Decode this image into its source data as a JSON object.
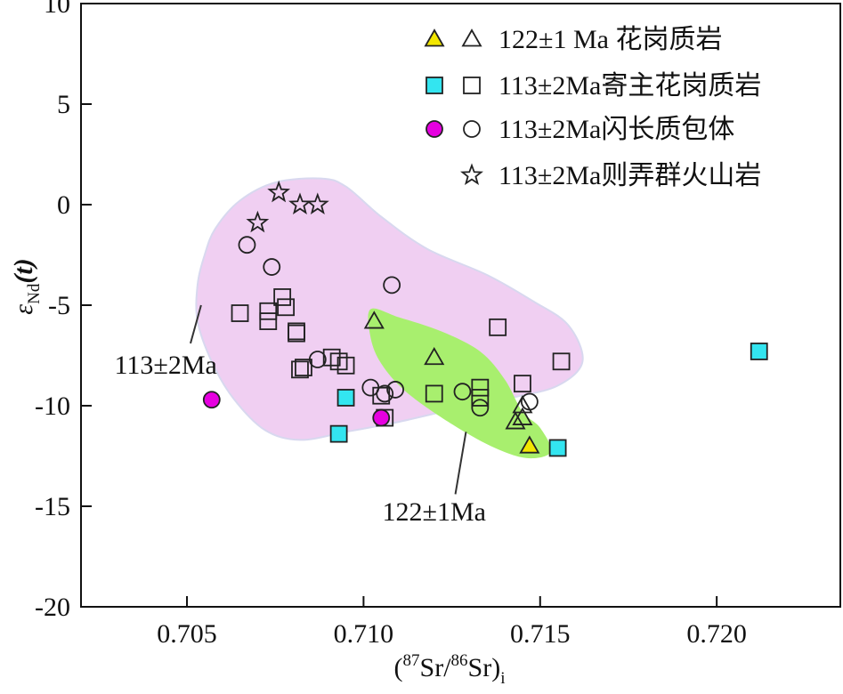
{
  "chart_data": {
    "type": "scatter",
    "xlabel": {
      "open": "(",
      "sup1": "87",
      "mid": "Sr/",
      "sup2": "86",
      "end": "Sr)",
      "sub": "i"
    },
    "ylabel": {
      "symbol": "ε",
      "sub": "Nd",
      "rest": "(t)"
    },
    "xlim": [
      0.702,
      0.7235
    ],
    "ylim": [
      -20,
      10
    ],
    "xticks": [
      0.705,
      0.71,
      0.715,
      0.72
    ],
    "xtick_labels": [
      "0.705",
      "0.710",
      "0.715",
      "0.720"
    ],
    "yticks": [
      10,
      5,
      0,
      -5,
      -10,
      -15,
      -20
    ],
    "ytick_labels": [
      "10",
      "5",
      "0",
      "-5",
      "-10",
      "-15",
      "-20"
    ],
    "legend": [
      {
        "label": "122±1 Ma 花岗质岩",
        "marker": "triangle",
        "fill": "#f2e600"
      },
      {
        "label": "113±2Ma寄主花岗质岩",
        "marker": "square",
        "fill": "#33e5f0"
      },
      {
        "label": "113±2Ma闪长质包体",
        "marker": "circle",
        "fill": "#e600e0"
      },
      {
        "label": "113±2Ma则弄群火山岩",
        "marker": "star",
        "fill": "none"
      }
    ],
    "regions": [
      {
        "name": "113±2Ma",
        "color": "#f0cff2",
        "outline": [
          [
            0.7053,
            -4.0
          ],
          [
            0.7055,
            -2.5
          ],
          [
            0.7058,
            -1.2
          ],
          [
            0.7065,
            0.2
          ],
          [
            0.7075,
            1.1
          ],
          [
            0.7088,
            1.3
          ],
          [
            0.7095,
            0.9
          ],
          [
            0.7105,
            -0.6
          ],
          [
            0.7118,
            -2.2
          ],
          [
            0.7135,
            -3.5
          ],
          [
            0.7148,
            -4.8
          ],
          [
            0.7158,
            -6.0
          ],
          [
            0.7162,
            -7.8
          ],
          [
            0.7155,
            -9.0
          ],
          [
            0.7142,
            -9.6
          ],
          [
            0.7125,
            -10.2
          ],
          [
            0.711,
            -10.8
          ],
          [
            0.7095,
            -11.3
          ],
          [
            0.7082,
            -11.7
          ],
          [
            0.7072,
            -11.2
          ],
          [
            0.7063,
            -9.6
          ],
          [
            0.7057,
            -7.8
          ],
          [
            0.7053,
            -5.8
          ]
        ]
      },
      {
        "name": "122±1Ma",
        "color": "#a8ef6e",
        "outline": [
          [
            0.7102,
            -5.2
          ],
          [
            0.711,
            -5.6
          ],
          [
            0.7122,
            -6.3
          ],
          [
            0.7133,
            -7.3
          ],
          [
            0.714,
            -8.7
          ],
          [
            0.7145,
            -10.3
          ],
          [
            0.715,
            -11.1
          ],
          [
            0.7153,
            -12.3
          ],
          [
            0.7146,
            -12.6
          ],
          [
            0.7136,
            -12.0
          ],
          [
            0.7124,
            -10.8
          ],
          [
            0.7112,
            -9.3
          ],
          [
            0.7105,
            -7.9
          ],
          [
            0.7102,
            -6.6
          ]
        ]
      }
    ],
    "annotations": [
      {
        "text": "113±2Ma",
        "anchor": [
          0.7044,
          -8.4
        ],
        "line": [
          [
            0.7054,
            -5.0
          ],
          [
            0.7051,
            -6.9
          ]
        ]
      },
      {
        "text": "122±1Ma",
        "anchor": [
          0.712,
          -15.7
        ],
        "line": [
          [
            0.7129,
            -11.3
          ],
          [
            0.7126,
            -14.4
          ]
        ]
      }
    ],
    "series": [
      {
        "name": "122±1 Ma 花岗质岩 (filled)",
        "marker": "triangle",
        "fill": "#f2e600",
        "points": [
          [
            0.7147,
            -12.0
          ]
        ]
      },
      {
        "name": "122±1 Ma 花岗质岩 (open)",
        "marker": "triangle",
        "fill": "none",
        "points": [
          [
            0.7103,
            -5.8
          ],
          [
            0.712,
            -7.6
          ],
          [
            0.7145,
            -10.0
          ],
          [
            0.7145,
            -10.6
          ],
          [
            0.7143,
            -10.8
          ]
        ]
      },
      {
        "name": "113±2Ma寄主花岗质岩 (filled)",
        "marker": "square",
        "fill": "#33e5f0",
        "points": [
          [
            0.7212,
            -7.3
          ],
          [
            0.7095,
            -9.6
          ],
          [
            0.7093,
            -11.4
          ],
          [
            0.7155,
            -12.1
          ]
        ]
      },
      {
        "name": "113±2Ma寄主花岗质岩 (open)",
        "marker": "square",
        "fill": "none",
        "points": [
          [
            0.7065,
            -5.4
          ],
          [
            0.7073,
            -5.3
          ],
          [
            0.7073,
            -5.8
          ],
          [
            0.7077,
            -4.6
          ],
          [
            0.7078,
            -5.1
          ],
          [
            0.7081,
            -6.3
          ],
          [
            0.7081,
            -6.4
          ],
          [
            0.7082,
            -8.2
          ],
          [
            0.7083,
            -8.1
          ],
          [
            0.7091,
            -7.6
          ],
          [
            0.7093,
            -7.8
          ],
          [
            0.7095,
            -8.0
          ],
          [
            0.7105,
            -9.5
          ],
          [
            0.7106,
            -10.6
          ],
          [
            0.712,
            -9.4
          ],
          [
            0.7133,
            -9.1
          ],
          [
            0.7133,
            -9.6
          ],
          [
            0.7138,
            -6.1
          ],
          [
            0.7145,
            -8.9
          ],
          [
            0.7156,
            -7.8
          ]
        ]
      },
      {
        "name": "113±2Ma闪长质包体 (filled)",
        "marker": "circle",
        "fill": "#e600e0",
        "points": [
          [
            0.7057,
            -9.7
          ],
          [
            0.7105,
            -10.6
          ]
        ]
      },
      {
        "name": "113±2Ma闪长质包体 (open)",
        "marker": "circle",
        "fill": "none",
        "points": [
          [
            0.7067,
            -2.0
          ],
          [
            0.7074,
            -3.1
          ],
          [
            0.7108,
            -4.0
          ],
          [
            0.7087,
            -7.7
          ],
          [
            0.7102,
            -9.1
          ],
          [
            0.7106,
            -9.4
          ],
          [
            0.7109,
            -9.2
          ],
          [
            0.7128,
            -9.3
          ],
          [
            0.7133,
            -10.1
          ],
          [
            0.7147,
            -9.8
          ]
        ]
      },
      {
        "name": "113±2Ma则弄群火山岩",
        "marker": "star",
        "fill": "none",
        "points": [
          [
            0.7076,
            0.6
          ],
          [
            0.707,
            -0.9
          ],
          [
            0.7082,
            0.0
          ],
          [
            0.7087,
            0.0
          ]
        ]
      }
    ]
  }
}
